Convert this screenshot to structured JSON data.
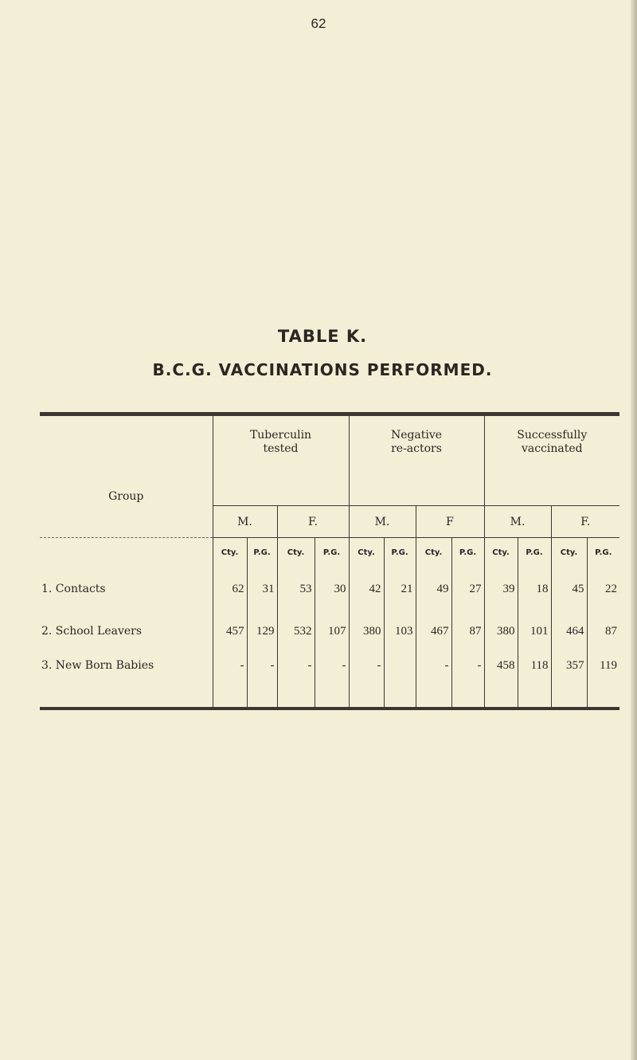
{
  "page_number": "62",
  "title": "TABLE K.",
  "subtitle": "B.C.G. VACCINATIONS PERFORMED.",
  "table": {
    "group_header": "Group",
    "sections": [
      {
        "label_line1": "Tuberculin",
        "label_line2": "tested",
        "sexes": [
          "M.",
          "F."
        ]
      },
      {
        "label_line1": "Negative",
        "label_line2": "re-actors",
        "sexes": [
          "M.",
          "F"
        ]
      },
      {
        "label_line1": "Successfully",
        "label_line2": "vaccinated",
        "sexes": [
          "M.",
          "F."
        ]
      }
    ],
    "subcols": [
      "Cty.",
      "P.G."
    ],
    "rows": [
      {
        "group": "1.  Contacts",
        "values": [
          "62",
          "31",
          "53",
          "30",
          "42",
          "21",
          "49",
          "27",
          "39",
          "18",
          "45",
          "22"
        ]
      },
      {
        "group": "2.  School Leavers",
        "values": [
          "457",
          "129",
          "532",
          "107",
          "380",
          "103",
          "467",
          "87",
          "380",
          "101",
          "464",
          "87"
        ]
      },
      {
        "group": "3.  New Born Babies",
        "values": [
          "-",
          "-",
          "-",
          "-",
          "-",
          "",
          "-",
          "-",
          "458",
          "118",
          "357",
          "119"
        ]
      }
    ]
  }
}
